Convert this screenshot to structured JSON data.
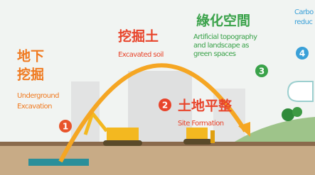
{
  "steps": [
    {
      "number": "1",
      "title_lines": [
        "地下",
        "挖掘"
      ],
      "subtitle_lines": [
        "Underground",
        "Excavation"
      ]
    },
    {
      "title_lines": [
        "挖掘土"
      ],
      "subtitle_lines": [
        "Excavated soil"
      ]
    },
    {
      "number": "2",
      "title_lines": [
        "土地平整"
      ],
      "subtitle_lines": [
        "Site Formation"
      ]
    },
    {
      "number": "3",
      "title_lines": [
        "綠化空間"
      ],
      "subtitle_lines": [
        "Artificial topography",
        "and landscape as",
        "green spaces"
      ]
    },
    {
      "number": "4",
      "title_lines": [
        "Carbo",
        "reduc"
      ]
    }
  ]
}
